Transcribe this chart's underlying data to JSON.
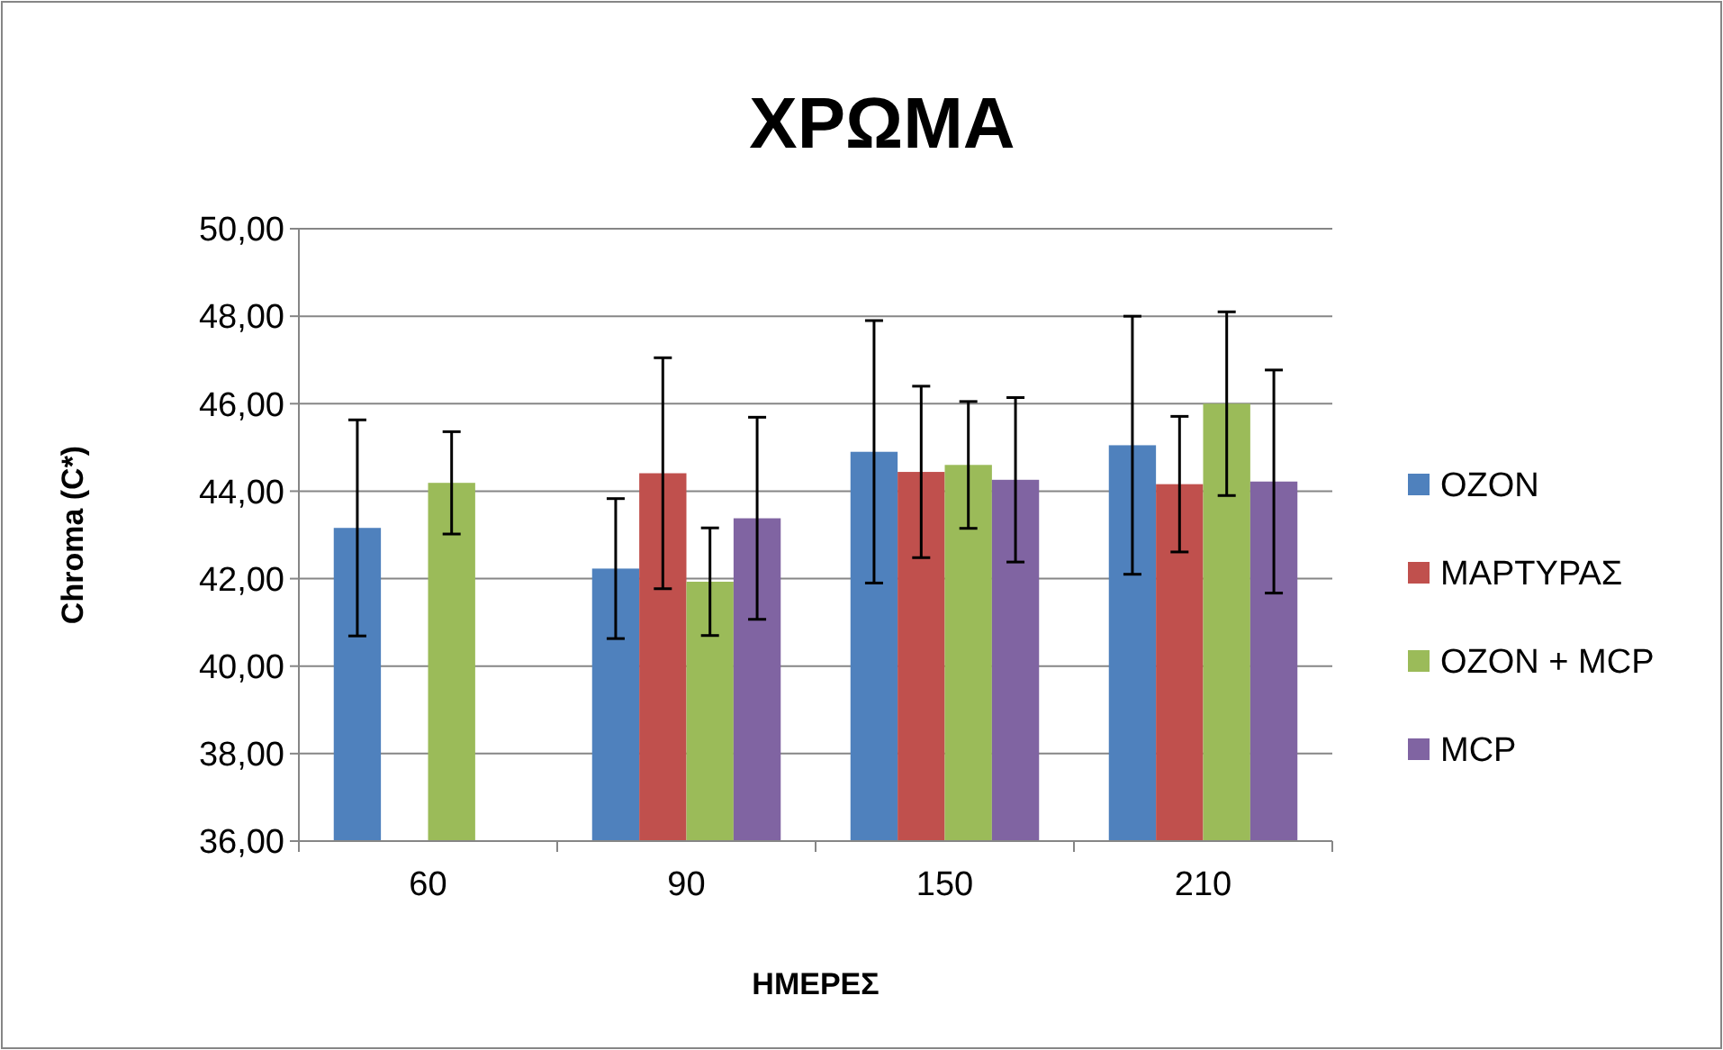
{
  "chart_data": {
    "type": "bar",
    "title": "ΧΡΩΜΑ",
    "xlabel": "ΗΜΕΡΕΣ",
    "ylabel": "Chroma (C*)",
    "categories": [
      "60",
      "90",
      "150",
      "210"
    ],
    "series": [
      {
        "name": "OZON",
        "color": "#4f81bd",
        "values": [
          43.16,
          42.23,
          44.9,
          45.05
        ],
        "errors": [
          2.47,
          1.6,
          3.0,
          2.95
        ]
      },
      {
        "name": "ΜΑΡΤΥΡΑΣ",
        "color": "#c0504d",
        "values": [
          null,
          44.41,
          44.44,
          44.16
        ],
        "errors": [
          null,
          2.64,
          1.96,
          1.55
        ]
      },
      {
        "name": "OZON + MCP",
        "color": "#9bbb59",
        "values": [
          44.19,
          41.93,
          44.6,
          46.0
        ],
        "errors": [
          1.17,
          1.23,
          1.45,
          2.1
        ]
      },
      {
        "name": "MCP",
        "color": "#8064a2",
        "values": [
          null,
          43.38,
          44.26,
          44.22
        ],
        "errors": [
          null,
          2.31,
          1.88,
          2.55
        ]
      }
    ],
    "ylim": [
      36,
      50
    ],
    "yticks": [
      {
        "value": 36,
        "label": "36,00"
      },
      {
        "value": 38,
        "label": "38,00"
      },
      {
        "value": 40,
        "label": "40,00"
      },
      {
        "value": 42,
        "label": "42,00"
      },
      {
        "value": 44,
        "label": "44,00"
      },
      {
        "value": 46,
        "label": "46,00"
      },
      {
        "value": 48,
        "label": "48,00"
      },
      {
        "value": 50,
        "label": "50,00"
      }
    ],
    "grid": "y",
    "legend": "right"
  }
}
